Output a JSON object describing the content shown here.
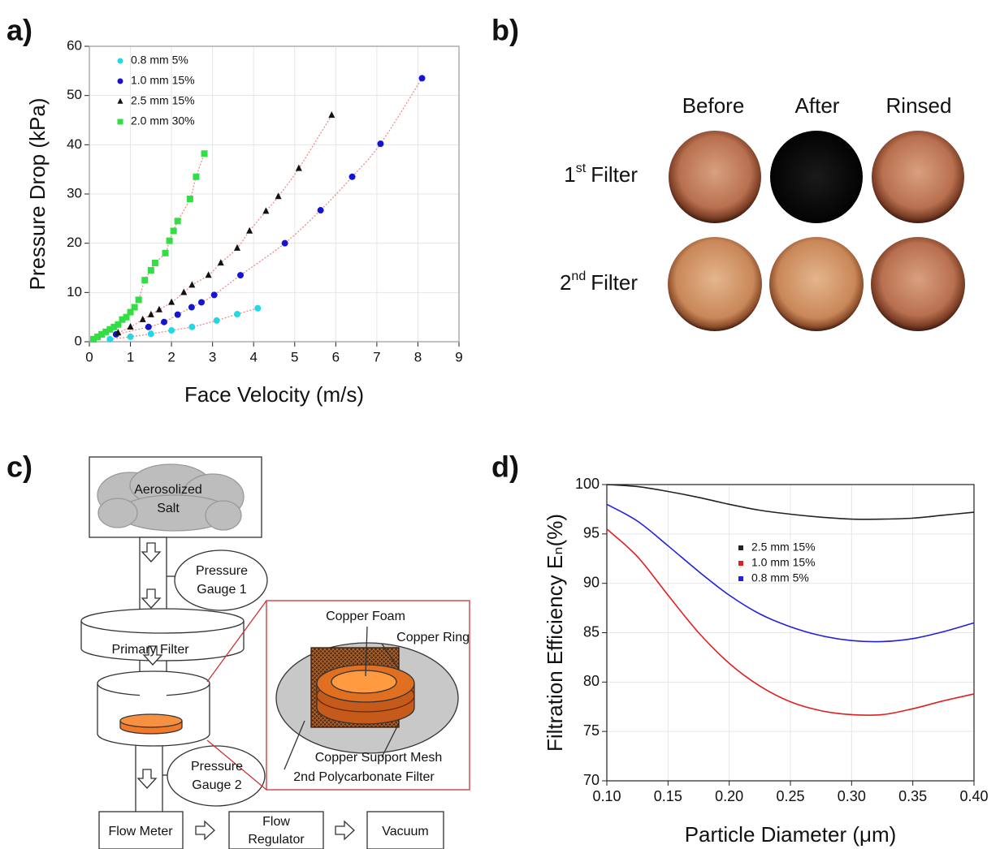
{
  "panels": [
    "a)",
    "b)",
    "c)",
    "d)"
  ],
  "photos": {
    "columns": [
      "Before",
      "After",
      "Rinsed"
    ],
    "rows": [
      {
        "ordinal": "1",
        "suffix": "st",
        "label": "Filter"
      },
      {
        "ordinal": "2",
        "suffix": "nd",
        "label": "Filter"
      }
    ]
  },
  "diagram": {
    "source": [
      "Aerosolized",
      "Salt"
    ],
    "gauge1": [
      "Pressure",
      "Gauge 1"
    ],
    "primary_filter": "Primary Filter",
    "gauge2": [
      "Pressure",
      "Gauge 2"
    ],
    "inset": {
      "foam": "Copper Foam",
      "ring": "Copper Ring",
      "mesh": "Copper Support Mesh",
      "polycarbonate": "2nd Polycarbonate Filter"
    },
    "meter": "Flow Meter",
    "regulator": [
      "Flow",
      "Regulator"
    ],
    "vacuum": "Vacuum"
  },
  "chart_data": [
    {
      "type": "scatter",
      "xlabel": "Face Velocity (m/s)",
      "ylabel": "Pressure Drop (kPa)",
      "xlim": [
        0,
        9
      ],
      "xticks": [
        0,
        1,
        2,
        3,
        4,
        5,
        6,
        7,
        8,
        9
      ],
      "ylim": [
        0,
        60
      ],
      "yticks": [
        0,
        10,
        20,
        30,
        40,
        50,
        60
      ],
      "grid": true,
      "legend": "upper left",
      "fit_color": "#f08a8a",
      "series": [
        {
          "name": "0.8 mm 5%",
          "color": "#22d8e6",
          "marker": "circle",
          "x": [
            0.5,
            1.0,
            1.5,
            2.0,
            2.5,
            3.1,
            3.6,
            4.1
          ],
          "values": [
            0.5,
            1.0,
            1.6,
            2.3,
            3.0,
            4.3,
            5.6,
            6.8
          ]
        },
        {
          "name": "1.0 mm 15%",
          "color": "#1414d2",
          "marker": "circle",
          "x": [
            0.65,
            1.44,
            1.82,
            2.15,
            2.49,
            2.73,
            3.04,
            3.68,
            4.76,
            5.63,
            6.4,
            7.09,
            8.1
          ],
          "values": [
            1.5,
            3.0,
            4.0,
            5.5,
            7.0,
            8.0,
            9.5,
            13.5,
            20.0,
            26.7,
            33.5,
            40.2,
            53.5
          ]
        },
        {
          "name": "2.5 mm 15%",
          "color": "#111111",
          "marker": "triangle",
          "x": [
            0.7,
            1.0,
            1.3,
            1.5,
            1.7,
            2.0,
            2.3,
            2.5,
            2.9,
            3.2,
            3.6,
            3.9,
            4.3,
            4.6,
            5.1,
            5.9
          ],
          "values": [
            1.8,
            3.0,
            4.5,
            5.5,
            6.5,
            8.0,
            10.0,
            11.5,
            13.5,
            16.0,
            19.0,
            22.5,
            26.5,
            29.5,
            35.2,
            46.0
          ]
        },
        {
          "name": "2.0 mm 30%",
          "color": "#33dd44",
          "marker": "square",
          "x": [
            0.1,
            0.2,
            0.3,
            0.4,
            0.5,
            0.6,
            0.7,
            0.8,
            0.9,
            1.0,
            1.1,
            1.2,
            1.35,
            1.5,
            1.6,
            1.85,
            1.95,
            2.05,
            2.15,
            2.45,
            2.6,
            2.8
          ],
          "values": [
            0.5,
            1.0,
            1.5,
            2.0,
            2.5,
            3.0,
            3.5,
            4.5,
            5.0,
            6.0,
            7.0,
            8.5,
            12.5,
            14.5,
            16.0,
            18.0,
            20.5,
            22.5,
            24.5,
            29.0,
            33.5,
            38.2
          ]
        }
      ]
    },
    {
      "type": "line",
      "xlabel": "Particle Diameter (μm)",
      "ylabel": "Filtration Efficiency Eₙ(%)",
      "x": [
        0.1,
        0.125,
        0.15,
        0.175,
        0.2,
        0.225,
        0.25,
        0.275,
        0.3,
        0.325,
        0.35,
        0.375,
        0.4
      ],
      "xlim": [
        0.1,
        0.4
      ],
      "xticks": [
        {
          "value": 0.1,
          "label": "0.10"
        },
        0.15,
        {
          "value": 0.2,
          "label": "0.20"
        },
        0.25,
        {
          "value": 0.3,
          "label": "0.30"
        },
        0.35,
        {
          "value": 0.4,
          "label": "0.40"
        }
      ],
      "ylim": [
        70,
        100
      ],
      "yticks": [
        70,
        75,
        80,
        85,
        90,
        95,
        100
      ],
      "grid": true,
      "legend": "upper center",
      "series": [
        {
          "name": "2.5 mm 15%",
          "color": "#222222",
          "values": [
            100,
            99.8,
            99.3,
            98.7,
            98.0,
            97.4,
            97.0,
            96.7,
            96.5,
            96.5,
            96.6,
            96.9,
            97.2
          ]
        },
        {
          "name": "1.0 mm 15%",
          "color": "#e02020",
          "values": [
            95.5,
            92.7,
            88.8,
            85.0,
            81.9,
            79.6,
            78.0,
            77.1,
            76.7,
            76.7,
            77.3,
            78.1,
            78.8
          ]
        },
        {
          "name": "0.8 mm   5%",
          "color": "#2020e0",
          "values": [
            98.0,
            96.3,
            93.8,
            91.2,
            88.8,
            86.9,
            85.6,
            84.7,
            84.2,
            84.1,
            84.4,
            85.1,
            86.0
          ]
        }
      ]
    }
  ]
}
